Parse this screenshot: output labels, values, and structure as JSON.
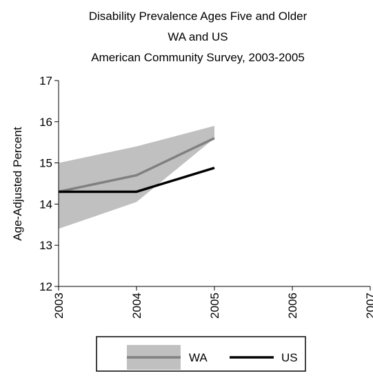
{
  "chart_data": {
    "type": "line",
    "title": [
      "Disability Prevalence Ages Five and Older",
      "WA and US",
      "American Community Survey, 2003-2005"
    ],
    "xlabel": "",
    "ylabel": "Age-Adjusted Percent",
    "x": [
      2003,
      2004,
      2005
    ],
    "x_ticks": [
      "2003",
      "2004",
      "2005",
      "2006",
      "2007"
    ],
    "xlim": [
      2003,
      2007
    ],
    "y_ticks": [
      "12",
      "13",
      "14",
      "15",
      "16",
      "17"
    ],
    "ylim": [
      12,
      17
    ],
    "grid": false,
    "legend_position": "bottom",
    "series": [
      {
        "name": "WA",
        "values": [
          14.3,
          14.7,
          15.6
        ],
        "ci_lower": [
          13.4,
          14.05,
          15.6
        ],
        "ci_upper": [
          15.0,
          15.4,
          15.9
        ],
        "color": "#808080",
        "band_color": "#c0c0c0"
      },
      {
        "name": "US",
        "values": [
          14.3,
          14.3,
          14.88
        ],
        "color": "#000000"
      }
    ]
  }
}
